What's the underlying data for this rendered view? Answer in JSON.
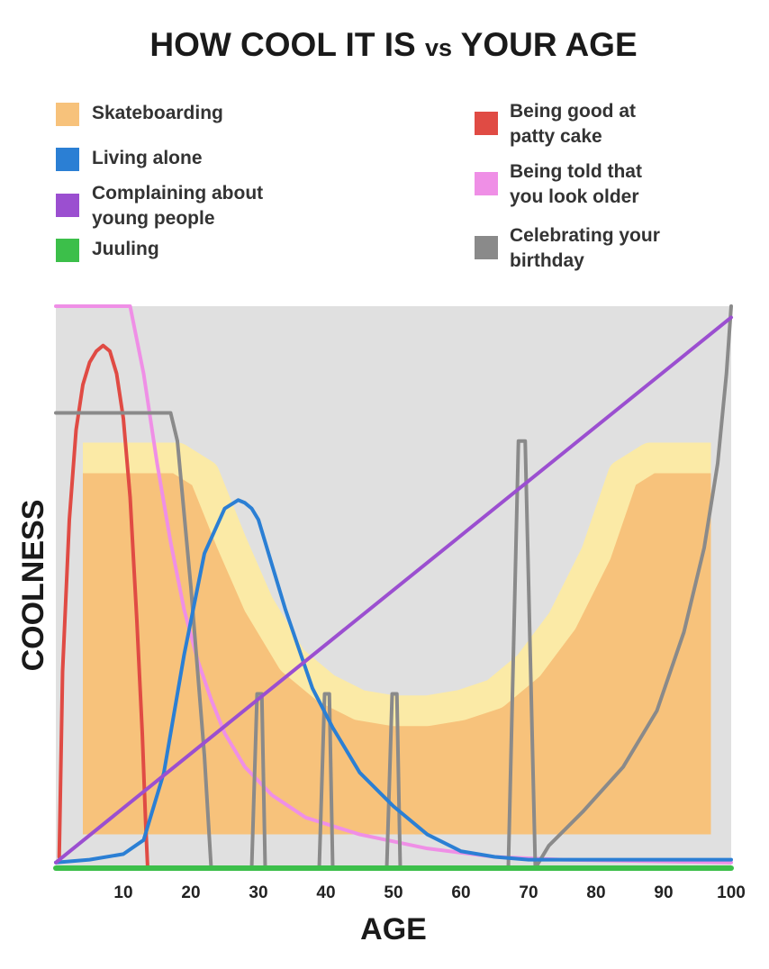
{
  "chart_data": {
    "type": "line",
    "title_main": "HOW COOL IT IS",
    "title_vs": "vs",
    "title_end": "YOUR AGE",
    "xlabel": "AGE",
    "ylabel": "COOLNESS",
    "xlim": [
      0,
      100
    ],
    "ylim": [
      0,
      100
    ],
    "x_ticks": [
      10,
      20,
      30,
      40,
      50,
      60,
      70,
      80,
      90,
      100
    ],
    "y_ticks": [],
    "grid": false,
    "background_color": "#e0e0e0",
    "legend_placement": "top",
    "legend": [
      {
        "key": "skateboarding",
        "lines": [
          "Skateboarding"
        ],
        "color": "#f7c27b"
      },
      {
        "key": "living_alone",
        "lines": [
          "Living alone"
        ],
        "color": "#2b7fd4"
      },
      {
        "key": "complaining",
        "lines": [
          "Complaining about",
          "young people"
        ],
        "color": "#9b4fd0"
      },
      {
        "key": "juuling",
        "lines": [
          "Juuling"
        ],
        "color": "#3cbf4a"
      },
      {
        "key": "patty_cake",
        "lines": [
          "Being good at",
          "patty cake"
        ],
        "color": "#e04b44"
      },
      {
        "key": "told_older",
        "lines": [
          "Being told that",
          "you look older"
        ],
        "color": "#ef8fe6"
      },
      {
        "key": "birthday",
        "lines": [
          "Celebrating your",
          "birthday"
        ],
        "color": "#8a8a8a"
      }
    ],
    "series": [
      {
        "key": "skateboarding",
        "color": "#f7c27b",
        "highlight_color": "#fbeaa6",
        "render": "band",
        "x": [
          4,
          8,
          14,
          18,
          22,
          26,
          30,
          35,
          40,
          45,
          50,
          55,
          60,
          65,
          70,
          75,
          80,
          84,
          88,
          92,
          97
        ],
        "y_top": [
          73,
          73,
          73,
          73,
          70,
          58,
          47,
          37,
          32,
          29,
          28,
          28,
          29,
          31,
          36,
          44,
          56,
          70,
          73,
          73,
          73
        ],
        "y_bottom": [
          6,
          6,
          6,
          6,
          6,
          6,
          6,
          6,
          6,
          6,
          6,
          6,
          6,
          6,
          6,
          6,
          6,
          6,
          6,
          6,
          6
        ]
      },
      {
        "key": "told_older",
        "color": "#ef8fe6",
        "x": [
          0,
          11,
          13,
          15,
          17,
          19,
          21,
          23,
          25,
          28,
          32,
          37,
          45,
          55,
          65,
          75,
          100
        ],
        "y": [
          100,
          100,
          88,
          72,
          58,
          46,
          37,
          30,
          24,
          18,
          13,
          9,
          6,
          3.5,
          2,
          1.5,
          1
        ]
      },
      {
        "key": "patty_cake",
        "color": "#e04b44",
        "x": [
          0.5,
          1,
          2,
          3,
          4,
          5,
          6,
          7,
          8,
          9,
          10,
          11,
          12,
          12.8,
          13.3,
          13.6
        ],
        "y": [
          2,
          35,
          62,
          78,
          86,
          90,
          92,
          93,
          92,
          88,
          80,
          66,
          44,
          24,
          8,
          0
        ]
      },
      {
        "key": "birthday",
        "color": "#8a8a8a",
        "x": [
          0,
          17,
          18,
          20,
          22,
          23,
          29,
          29.8,
          30.5,
          31,
          39,
          39.8,
          40.5,
          41,
          49,
          49.8,
          50.5,
          51,
          67,
          68.5,
          69.5,
          71,
          73,
          78,
          84,
          89,
          93,
          96,
          98,
          99.3,
          100
        ],
        "y": [
          81,
          81,
          76,
          50,
          20,
          0,
          0,
          31,
          31,
          0,
          0,
          31,
          31,
          0,
          0,
          31,
          31,
          0,
          0,
          76,
          76,
          0,
          4,
          10,
          18,
          28,
          42,
          57,
          72,
          88,
          100
        ]
      },
      {
        "key": "living_alone",
        "color": "#2b7fd4",
        "x": [
          0,
          5,
          10,
          13,
          16,
          19,
          22,
          25,
          27,
          28,
          29,
          30,
          31,
          32,
          34,
          36,
          38,
          41,
          45,
          50,
          55,
          60,
          65,
          70,
          100
        ],
        "y": [
          1,
          1.5,
          2.5,
          5,
          17,
          38,
          56,
          64,
          65.5,
          65,
          64,
          62,
          58,
          54,
          46,
          39,
          32,
          25,
          17,
          11,
          6,
          3,
          2,
          1.5,
          1.5
        ]
      },
      {
        "key": "complaining",
        "color": "#9b4fd0",
        "x": [
          0,
          100
        ],
        "y": [
          1,
          98
        ]
      },
      {
        "key": "juuling",
        "color": "#3cbf4a",
        "x": [
          0,
          100
        ],
        "y": [
          0,
          0
        ]
      }
    ]
  }
}
